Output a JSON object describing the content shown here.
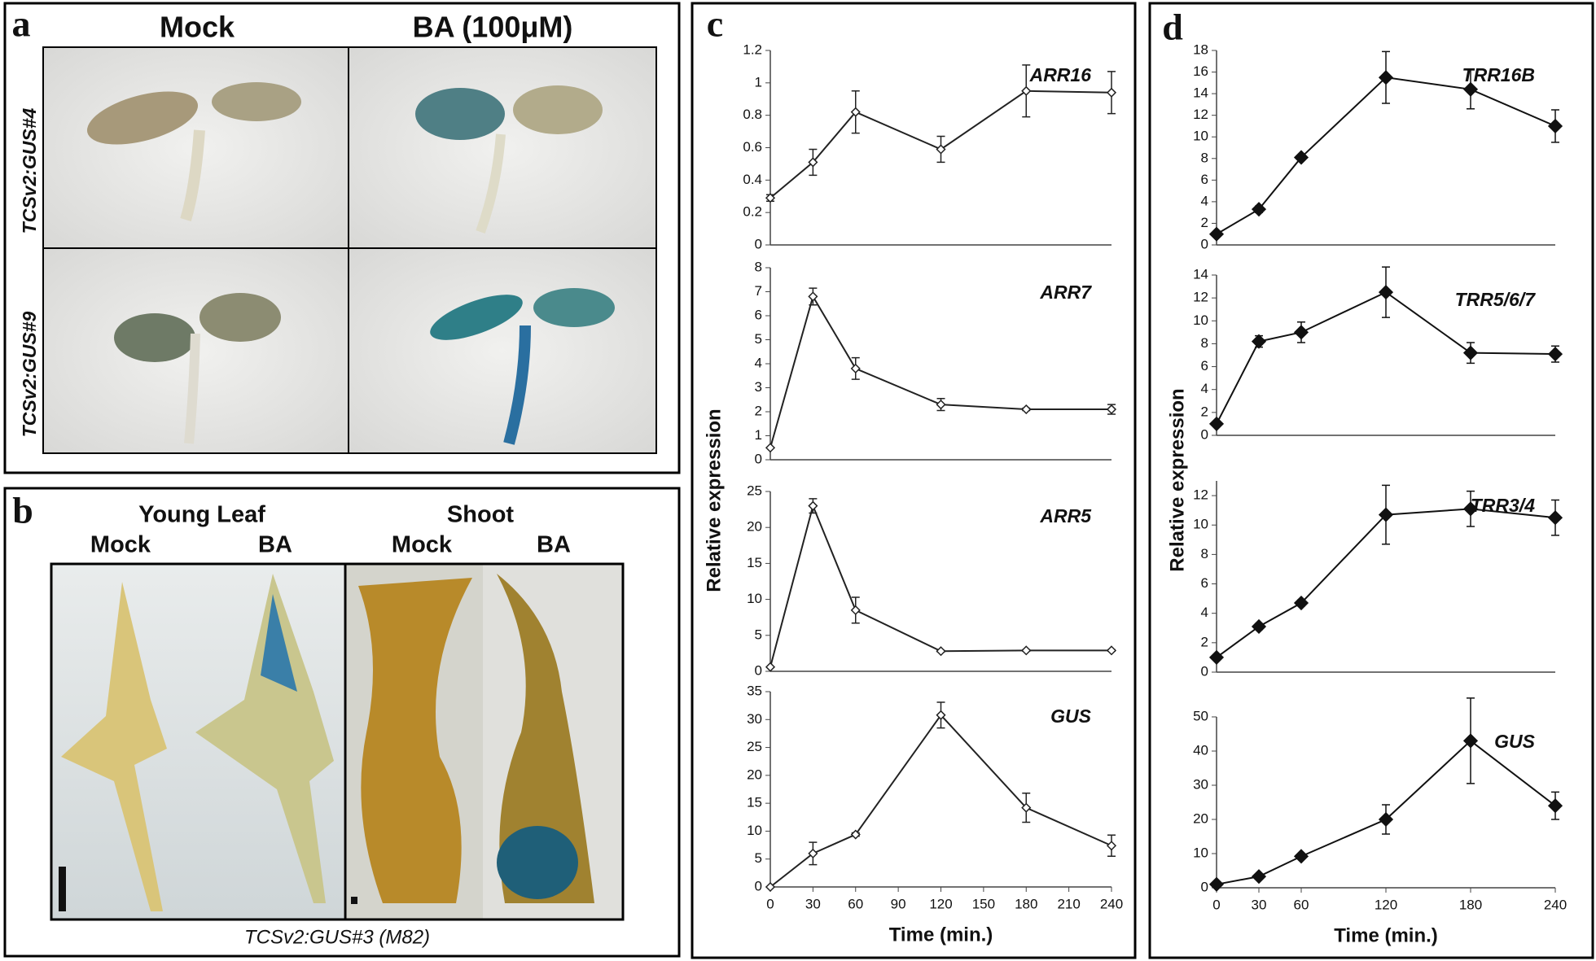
{
  "panels": {
    "a": {
      "label": "a",
      "columns": [
        "Mock",
        "BA (100μM)"
      ],
      "rows": [
        "TCSv2:GUS#4",
        "TCSv2:GUS#9"
      ]
    },
    "b": {
      "label": "b",
      "groups": [
        "Young Leaf",
        "Shoot"
      ],
      "columns": [
        "Mock",
        "BA",
        "Mock",
        "BA"
      ],
      "caption": "TCSv2:GUS#3 (M82)"
    },
    "c": {
      "label": "c",
      "ylabel": "Relative expression"
    },
    "d": {
      "label": "d",
      "ylabel": "Relative expression"
    }
  },
  "chart_data": [
    {
      "type": "line",
      "title": "ARR16",
      "x": [
        0,
        30,
        60,
        120,
        180,
        240
      ],
      "xlim": [
        0,
        240
      ],
      "values": [
        0.29,
        0.51,
        0.82,
        0.59,
        0.95,
        0.94
      ],
      "errors": [
        0.02,
        0.08,
        0.13,
        0.08,
        0.16,
        0.13
      ],
      "ylim": [
        0,
        1.2
      ],
      "yticks": [
        0,
        0.2,
        0.4,
        0.6,
        0.8,
        1,
        1.2
      ],
      "marker": "open-diamond",
      "color": "#222222"
    },
    {
      "type": "line",
      "title": "ARR7",
      "x": [
        0,
        30,
        60,
        120,
        180,
        240
      ],
      "xlim": [
        0,
        240
      ],
      "values": [
        0.5,
        6.8,
        3.8,
        2.3,
        2.1,
        2.1
      ],
      "errors": [
        0,
        0.35,
        0.45,
        0.25,
        0.05,
        0.2
      ],
      "ylim": [
        0,
        8
      ],
      "yticks": [
        0,
        1,
        2,
        3,
        4,
        5,
        6,
        7,
        8
      ],
      "marker": "open-diamond",
      "color": "#222222"
    },
    {
      "type": "line",
      "title": "ARR5",
      "x": [
        0,
        30,
        60,
        120,
        180,
        240
      ],
      "xlim": [
        0,
        240
      ],
      "values": [
        0.6,
        23,
        8.5,
        2.8,
        2.9,
        2.9
      ],
      "errors": [
        0,
        1,
        1.8,
        0.1,
        0.1,
        0.1
      ],
      "ylim": [
        0,
        25
      ],
      "yticks": [
        0,
        5,
        10,
        15,
        20,
        25
      ],
      "marker": "open-diamond",
      "color": "#222222"
    },
    {
      "type": "line",
      "title": "GUS",
      "x": [
        0,
        30,
        60,
        120,
        180,
        240
      ],
      "xlim": [
        0,
        240
      ],
      "values": [
        0,
        6,
        9.4,
        30.8,
        14.2,
        7.4
      ],
      "errors": [
        0,
        2,
        0.3,
        2.3,
        2.6,
        1.9
      ],
      "ylim": [
        0,
        35
      ],
      "yticks": [
        0,
        5,
        10,
        15,
        20,
        25,
        30,
        35
      ],
      "xticks": [
        0,
        30,
        60,
        90,
        120,
        150,
        180,
        210,
        240
      ],
      "xlabel": "Time (min.)",
      "marker": "open-diamond",
      "color": "#222222"
    },
    {
      "type": "line",
      "title": "TRR16B",
      "x": [
        0,
        30,
        60,
        120,
        180,
        240
      ],
      "xlim": [
        0,
        240
      ],
      "values": [
        1,
        3.3,
        8.1,
        15.5,
        14.4,
        11
      ],
      "errors": [
        0.1,
        0.3,
        0.2,
        2.4,
        1.8,
        1.5
      ],
      "ylim": [
        0,
        18
      ],
      "yticks": [
        0,
        2,
        4,
        6,
        8,
        10,
        12,
        14,
        16,
        18
      ],
      "marker": "filled-diamond",
      "color": "#111111"
    },
    {
      "type": "line",
      "title": "TRR5/6/7",
      "x": [
        0,
        30,
        60,
        120,
        180,
        240
      ],
      "xlim": [
        0,
        240
      ],
      "values": [
        1,
        8.2,
        9,
        12.5,
        7.2,
        7.1
      ],
      "errors": [
        0,
        0.5,
        0.9,
        2.2,
        0.9,
        0.7
      ],
      "ylim": [
        0,
        14
      ],
      "yticks": [
        0,
        2,
        4,
        6,
        8,
        10,
        12,
        14
      ],
      "marker": "filled-diamond",
      "color": "#111111"
    },
    {
      "type": "line",
      "title": "TRR3/4",
      "x": [
        0,
        30,
        60,
        120,
        180,
        240
      ],
      "xlim": [
        0,
        240
      ],
      "values": [
        1,
        3.1,
        4.7,
        10.7,
        11.1,
        10.5
      ],
      "errors": [
        0.1,
        0.2,
        0.2,
        2,
        1.2,
        1.2
      ],
      "ylim": [
        0,
        13
      ],
      "yticks": [
        0,
        2,
        4,
        6,
        8,
        10,
        12
      ],
      "marker": "filled-diamond",
      "color": "#111111"
    },
    {
      "type": "line",
      "title": "GUS",
      "x": [
        0,
        30,
        60,
        120,
        180,
        240
      ],
      "xlim": [
        0,
        240
      ],
      "values": [
        1,
        3.3,
        9.2,
        20,
        43,
        24
      ],
      "errors": [
        0,
        0.3,
        0.5,
        4.3,
        12.5,
        4
      ],
      "ylim": [
        0,
        50
      ],
      "yticks": [
        0,
        10,
        20,
        30,
        40,
        50
      ],
      "xticks": [
        0,
        30,
        60,
        120,
        180,
        240
      ],
      "xlabel": "Time (min.)",
      "marker": "filled-diamond",
      "color": "#111111"
    }
  ]
}
